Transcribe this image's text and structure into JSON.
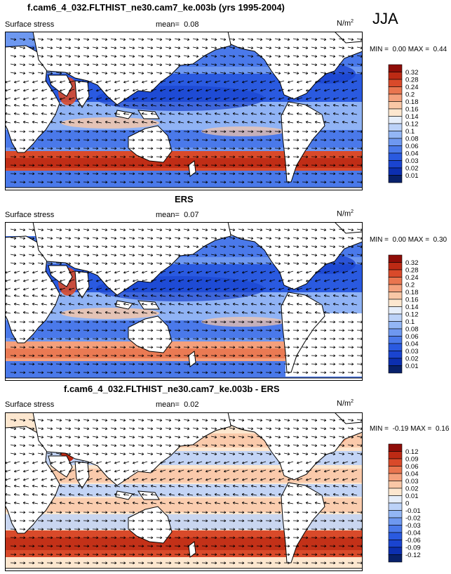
{
  "season": "JJA",
  "units_sup": "2",
  "panels": [
    {
      "title": "f.cam6_4_032.FLTHIST_ne30.cam7_ke.003b (yrs 1995-2004)",
      "variable": "Surface stress",
      "mean_label": "mean=",
      "mean_value": "0.08",
      "units": "N/m",
      "min_label": "MIN =",
      "min_value": "0.00",
      "max_label": "MAX =",
      "max_value": "0.44",
      "palette": "abs",
      "colorbar_labels": [
        "0.32",
        "0.28",
        "0.24",
        "0.2",
        "0.18",
        "0.16",
        "0.14",
        "0.12",
        "0.1",
        "0.08",
        "0.06",
        "0.04",
        "0.03",
        "0.02",
        "0.01"
      ]
    },
    {
      "title": "ERS",
      "variable": "Surface stress",
      "mean_label": "mean=",
      "mean_value": "0.07",
      "units": "N/m",
      "min_label": "MIN =",
      "min_value": "0.00",
      "max_label": "MAX =",
      "max_value": "0.30",
      "palette": "abs",
      "colorbar_labels": [
        "0.32",
        "0.28",
        "0.24",
        "0.2",
        "0.18",
        "0.16",
        "0.14",
        "0.12",
        "0.1",
        "0.08",
        "0.06",
        "0.04",
        "0.03",
        "0.02",
        "0.01"
      ]
    },
    {
      "title": "f.cam6_4_032.FLTHIST_ne30.cam7_ke.003b - ERS",
      "variable": "Surface stress",
      "mean_label": "mean=",
      "mean_value": "0.02",
      "units": "N/m",
      "min_label": "MIN =",
      "min_value": "-0.19",
      "max_label": "MAX =",
      "max_value": "0.16",
      "palette": "diff",
      "colorbar_labels": [
        "0.12",
        "0.09",
        "0.06",
        "0.04",
        "0.03",
        "0.02",
        "0.01",
        "0",
        "-0.01",
        "-0.02",
        "-0.03",
        "-0.04",
        "-0.06",
        "-0.09",
        "-0.12"
      ]
    }
  ],
  "colors": {
    "abs": [
      "#08216b",
      "#0c2fb0",
      "#1a44d0",
      "#2a5ae0",
      "#4a79ea",
      "#6e98f0",
      "#93b6f5",
      "#bcd2f8",
      "#e6eefa",
      "#fde7cf",
      "#f9c7a6",
      "#f4a07c",
      "#e9754f",
      "#d94a2a",
      "#bd2a14",
      "#8f0d08"
    ],
    "diff": [
      "#08216b",
      "#0c2fb0",
      "#1a44d0",
      "#2a5ae0",
      "#4a79ea",
      "#6e98f0",
      "#93b6f5",
      "#bcd2f8",
      "#e6eefa",
      "#fde7cf",
      "#f9c7a6",
      "#f4a07c",
      "#e9754f",
      "#d94a2a",
      "#bd2a14",
      "#8f0d08"
    ],
    "land": "#ffffff",
    "coast": "#000000"
  }
}
